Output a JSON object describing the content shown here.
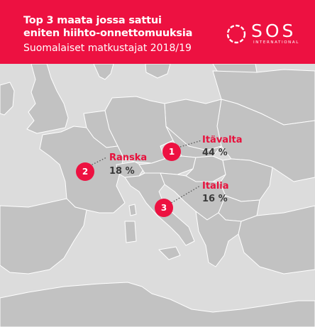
{
  "header": {
    "title": "Top 3 maata jossa sattui eniten hiihto-onnettomuuksia",
    "subtitle": "Suomalaiset matkustajat 2018/19"
  },
  "logo": {
    "name": "SOS",
    "tagline": "INTERNATIONAL"
  },
  "colors": {
    "brand_red": "#ed1141",
    "land": "#c2c2c2",
    "sea": "#dcdcdc",
    "border": "#ffffff",
    "text_dark": "#3a3a3a"
  },
  "markers": [
    {
      "rank": "1",
      "country": "Itävalta",
      "share": "44 %"
    },
    {
      "rank": "2",
      "country": "Ranska",
      "share": "18 %"
    },
    {
      "rank": "3",
      "country": "Italia",
      "share": "16 %"
    }
  ]
}
